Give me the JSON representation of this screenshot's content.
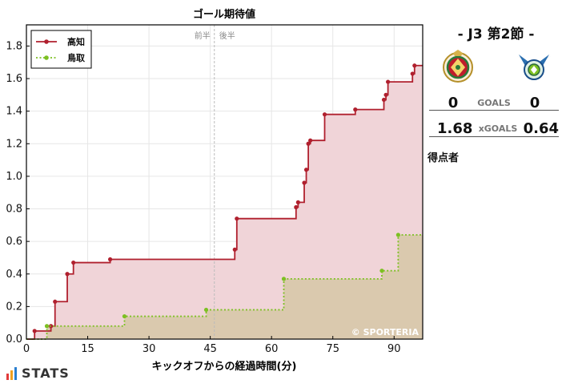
{
  "chart_data": {
    "type": "line",
    "step": true,
    "title": "ゴール期待値",
    "xlabel": "キックオフからの経過時間(分)",
    "ylabel": "",
    "xlim": [
      0,
      97
    ],
    "ylim": [
      0,
      1.93
    ],
    "xticks": [
      0,
      15,
      30,
      45,
      60,
      75,
      90
    ],
    "yticks": [
      0.0,
      0.2,
      0.4,
      0.6,
      0.8,
      1.0,
      1.2,
      1.4,
      1.6,
      1.8
    ],
    "grid": true,
    "legend_position": "top-left",
    "halftime_x": 46,
    "halftime_labels": [
      "前半",
      "後半"
    ],
    "watermark": "© SPORTERIA",
    "series": [
      {
        "name": "高知",
        "color": "#b0202e",
        "fill": "#f0d4d8",
        "line_style": "solid",
        "x": [
          0,
          2,
          6,
          7,
          10,
          11.5,
          20.5,
          51,
          51.5,
          66,
          66.5,
          68,
          68.5,
          69,
          69.5,
          73,
          80.5,
          87.5,
          88,
          88.5,
          94.5,
          95,
          97
        ],
        "y": [
          0,
          0.05,
          0.08,
          0.23,
          0.4,
          0.47,
          0.49,
          0.55,
          0.74,
          0.81,
          0.84,
          0.96,
          1.04,
          1.2,
          1.22,
          1.38,
          1.41,
          1.47,
          1.5,
          1.58,
          1.63,
          1.68,
          1.68
        ]
      },
      {
        "name": "鳥取",
        "color": "#7cc022",
        "fill": "#d8c8ac",
        "line_style": "dotted",
        "x": [
          0,
          5,
          24,
          44,
          63,
          87,
          91,
          97
        ],
        "y": [
          0,
          0.08,
          0.14,
          0.18,
          0.37,
          0.42,
          0.64,
          0.64
        ]
      }
    ]
  },
  "match": {
    "title": "- J3 第2節 -",
    "goals_label": "GOALS",
    "home_goals": "0",
    "away_goals": "0",
    "xg_label": "xGOALS",
    "home_xg": "1.68",
    "away_xg": "0.64",
    "scorers_label": "得点者",
    "home_logo_icon": "kochi-crest-icon",
    "away_logo_icon": "tottori-crest-icon"
  },
  "brand": {
    "text": "STATS",
    "bar_colors": [
      "#e23b3b",
      "#f0a020",
      "#2a7fd0"
    ]
  }
}
